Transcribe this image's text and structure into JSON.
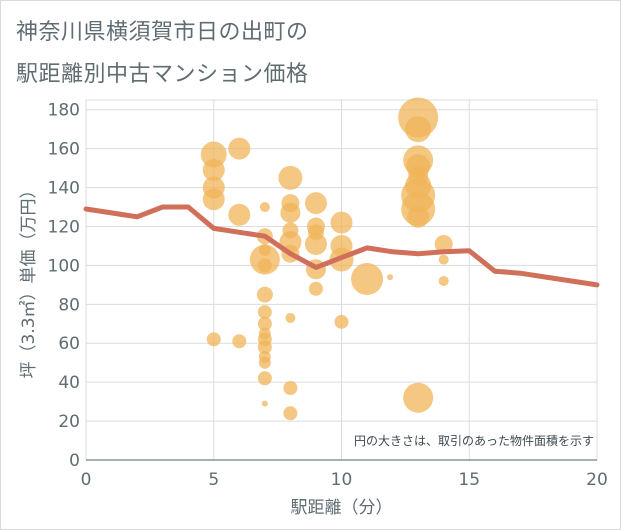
{
  "title_line1": "神奈川県横須賀市日の出町の",
  "title_line2": "駅距離別中古マンション価格",
  "chart_data": {
    "type": "scatter",
    "xlabel": "駅距離（分）",
    "ylabel": "坪（3.3㎡）単価（万円）",
    "note": "円の大きさは、取引のあった物件面積を示す",
    "xlim": [
      0,
      20
    ],
    "ylim": [
      0,
      185
    ],
    "xticks": [
      0,
      5,
      10,
      15,
      20
    ],
    "yticks": [
      0,
      20,
      40,
      60,
      80,
      100,
      120,
      140,
      160,
      180
    ],
    "grid": true,
    "colors": {
      "bubble": "#f0b45a",
      "line": "#d0705a",
      "text": "#5f6d72",
      "grid": "#d8dde0"
    },
    "bubbles": [
      {
        "x": 5,
        "y": 157,
        "s": 13
      },
      {
        "x": 5,
        "y": 149,
        "s": 11
      },
      {
        "x": 5,
        "y": 140,
        "s": 11
      },
      {
        "x": 5,
        "y": 134,
        "s": 11
      },
      {
        "x": 5,
        "y": 62,
        "s": 7
      },
      {
        "x": 6,
        "y": 160,
        "s": 11
      },
      {
        "x": 6,
        "y": 126,
        "s": 11
      },
      {
        "x": 6,
        "y": 61,
        "s": 7
      },
      {
        "x": 7,
        "y": 130,
        "s": 5
      },
      {
        "x": 7,
        "y": 115,
        "s": 8
      },
      {
        "x": 7,
        "y": 108,
        "s": 6
      },
      {
        "x": 7,
        "y": 103,
        "s": 15
      },
      {
        "x": 7,
        "y": 100,
        "s": 7
      },
      {
        "x": 7,
        "y": 85,
        "s": 8
      },
      {
        "x": 7,
        "y": 76,
        "s": 7
      },
      {
        "x": 7,
        "y": 70,
        "s": 7
      },
      {
        "x": 7,
        "y": 65,
        "s": 6
      },
      {
        "x": 7,
        "y": 62,
        "s": 7
      },
      {
        "x": 7,
        "y": 58,
        "s": 7
      },
      {
        "x": 7,
        "y": 53,
        "s": 6
      },
      {
        "x": 7,
        "y": 50,
        "s": 6
      },
      {
        "x": 7,
        "y": 42,
        "s": 7
      },
      {
        "x": 7,
        "y": 29,
        "s": 3
      },
      {
        "x": 8,
        "y": 145,
        "s": 12
      },
      {
        "x": 8,
        "y": 132,
        "s": 9
      },
      {
        "x": 8,
        "y": 127,
        "s": 10
      },
      {
        "x": 8,
        "y": 118,
        "s": 8
      },
      {
        "x": 8,
        "y": 112,
        "s": 11
      },
      {
        "x": 8,
        "y": 106,
        "s": 9
      },
      {
        "x": 8,
        "y": 73,
        "s": 5
      },
      {
        "x": 8,
        "y": 37,
        "s": 7
      },
      {
        "x": 8,
        "y": 24,
        "s": 7
      },
      {
        "x": 9,
        "y": 132,
        "s": 11
      },
      {
        "x": 9,
        "y": 120,
        "s": 9
      },
      {
        "x": 9,
        "y": 117,
        "s": 8
      },
      {
        "x": 9,
        "y": 111,
        "s": 11
      },
      {
        "x": 9,
        "y": 98,
        "s": 10
      },
      {
        "x": 9,
        "y": 88,
        "s": 7
      },
      {
        "x": 10,
        "y": 122,
        "s": 11
      },
      {
        "x": 10,
        "y": 110,
        "s": 11
      },
      {
        "x": 10,
        "y": 103,
        "s": 12
      },
      {
        "x": 10,
        "y": 71,
        "s": 7
      },
      {
        "x": 11,
        "y": 93,
        "s": 16
      },
      {
        "x": 11.9,
        "y": 94,
        "s": 3
      },
      {
        "x": 13,
        "y": 176,
        "s": 20
      },
      {
        "x": 13,
        "y": 170,
        "s": 13
      },
      {
        "x": 13,
        "y": 154,
        "s": 15
      },
      {
        "x": 13,
        "y": 151,
        "s": 12
      },
      {
        "x": 13,
        "y": 146,
        "s": 10
      },
      {
        "x": 13,
        "y": 141,
        "s": 13
      },
      {
        "x": 13,
        "y": 136,
        "s": 17
      },
      {
        "x": 13,
        "y": 129,
        "s": 17
      },
      {
        "x": 13,
        "y": 125,
        "s": 11
      },
      {
        "x": 13,
        "y": 32,
        "s": 15
      },
      {
        "x": 14,
        "y": 111,
        "s": 9
      },
      {
        "x": 14,
        "y": 103,
        "s": 5
      },
      {
        "x": 14,
        "y": 92,
        "s": 5
      }
    ],
    "line": {
      "x": [
        0,
        1,
        2,
        3,
        4,
        5,
        6,
        7,
        8,
        9,
        10,
        11,
        12,
        13,
        14,
        15,
        16,
        17,
        18,
        19,
        20
      ],
      "y": [
        129,
        127,
        125,
        130,
        130,
        119,
        117,
        115,
        106,
        99,
        104,
        109,
        107,
        106,
        107,
        107.5,
        97,
        96,
        94,
        92,
        90
      ]
    }
  }
}
